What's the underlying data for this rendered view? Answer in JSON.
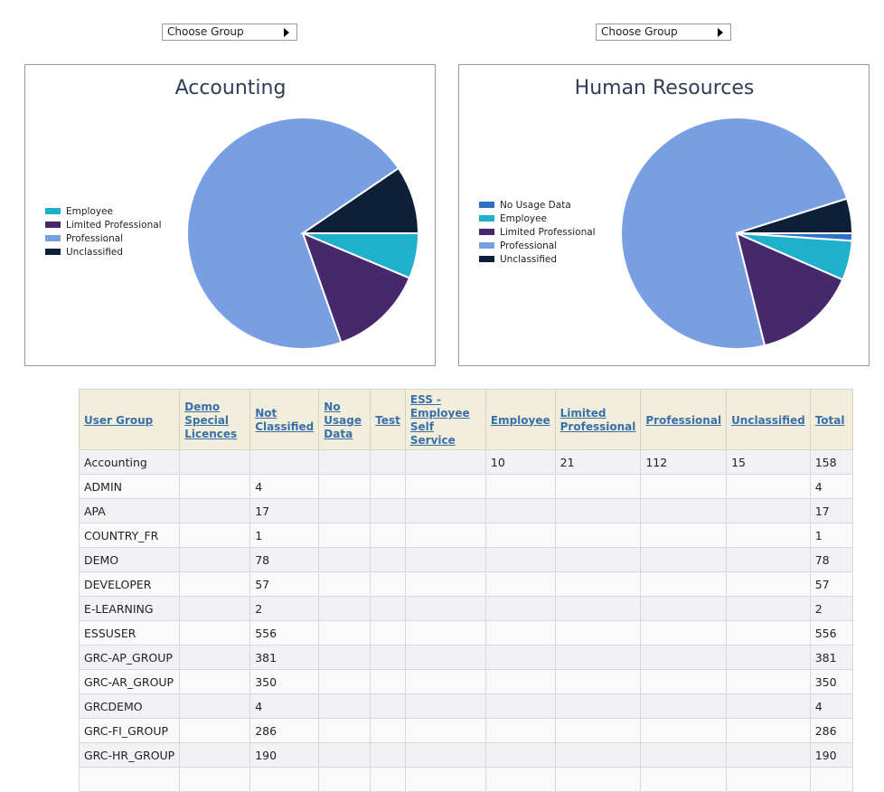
{
  "selectors": [
    {
      "label": "Choose Group"
    },
    {
      "label": "Choose Group"
    }
  ],
  "charts": {
    "accounting": {
      "title": "Accounting",
      "legend": [
        "Employee",
        "Limited Professional",
        "Professional",
        "Unclassified"
      ]
    },
    "hr": {
      "title": "Human Resources",
      "legend": [
        "No Usage Data",
        "Employee",
        "Limited Professional",
        "Professional",
        "Unclassified"
      ]
    }
  },
  "colors": {
    "No Usage Data": "#2f6fc6",
    "Employee": "#1fb0cc",
    "Limited Professional": "#48286c",
    "Professional": "#779fe2",
    "Unclassified": "#0e2038"
  },
  "chart_data": [
    {
      "type": "pie",
      "title": "Accounting",
      "categories": [
        "Employee",
        "Limited Professional",
        "Professional",
        "Unclassified"
      ],
      "values": [
        10,
        21,
        112,
        15
      ]
    },
    {
      "type": "pie",
      "title": "Human Resources",
      "categories": [
        "No Usage Data",
        "Employee",
        "Limited Professional",
        "Professional",
        "Unclassified"
      ],
      "values": [
        1.5,
        8,
        21,
        107,
        7
      ]
    }
  ],
  "table": {
    "headers": [
      "User Group",
      "Demo Special Licences",
      "Not Classified",
      "No Usage Data",
      "Test",
      "ESS - Employee Self Service",
      "Employee",
      "Limited Professional",
      "Professional",
      "Unclassified",
      "Total"
    ],
    "rows": [
      [
        "Accounting",
        "",
        "",
        "",
        "",
        "",
        "10",
        "21",
        "112",
        "15",
        "158"
      ],
      [
        "ADMIN",
        "",
        "4",
        "",
        "",
        "",
        "",
        "",
        "",
        "",
        "4"
      ],
      [
        "APA",
        "",
        "17",
        "",
        "",
        "",
        "",
        "",
        "",
        "",
        "17"
      ],
      [
        "COUNTRY_FR",
        "",
        "1",
        "",
        "",
        "",
        "",
        "",
        "",
        "",
        "1"
      ],
      [
        "DEMO",
        "",
        "78",
        "",
        "",
        "",
        "",
        "",
        "",
        "",
        "78"
      ],
      [
        "DEVELOPER",
        "",
        "57",
        "",
        "",
        "",
        "",
        "",
        "",
        "",
        "57"
      ],
      [
        "E-LEARNING",
        "",
        "2",
        "",
        "",
        "",
        "",
        "",
        "",
        "",
        "2"
      ],
      [
        "ESSUSER",
        "",
        "556",
        "",
        "",
        "",
        "",
        "",
        "",
        "",
        "556"
      ],
      [
        "GRC-AP_GROUP",
        "",
        "381",
        "",
        "",
        "",
        "",
        "",
        "",
        "",
        "381"
      ],
      [
        "GRC-AR_GROUP",
        "",
        "350",
        "",
        "",
        "",
        "",
        "",
        "",
        "",
        "350"
      ],
      [
        "GRCDEMO",
        "",
        "4",
        "",
        "",
        "",
        "",
        "",
        "",
        "",
        "4"
      ],
      [
        "GRC-FI_GROUP",
        "",
        "286",
        "",
        "",
        "",
        "",
        "",
        "",
        "",
        "286"
      ],
      [
        "GRC-HR_GROUP",
        "",
        "190",
        "",
        "",
        "",
        "",
        "",
        "",
        "",
        "190"
      ],
      [
        "",
        "",
        "",
        "",
        "",
        "",
        "",
        "",
        "",
        "",
        ""
      ]
    ]
  }
}
